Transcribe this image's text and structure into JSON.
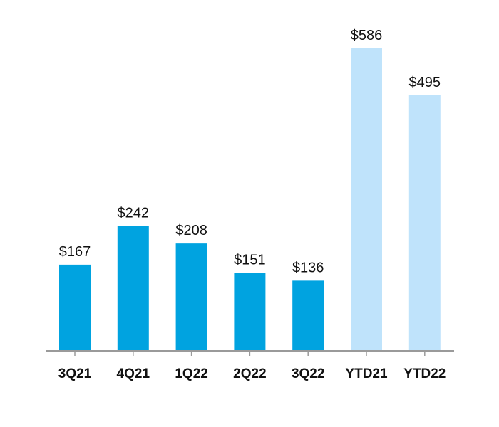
{
  "chart_data": {
    "type": "bar",
    "categories": [
      "3Q21",
      "4Q21",
      "1Q22",
      "2Q22",
      "3Q22",
      "YTD21",
      "YTD22"
    ],
    "values": [
      167,
      242,
      208,
      151,
      136,
      586,
      495
    ],
    "value_labels": [
      "$167",
      "$242",
      "$208",
      "$151",
      "$136",
      "$586",
      "$495"
    ],
    "bar_colors": [
      "#00a3e0",
      "#00a3e0",
      "#00a3e0",
      "#00a3e0",
      "#00a3e0",
      "#bfe3fb",
      "#bfe3fb"
    ],
    "title": "",
    "xlabel": "",
    "ylabel": "",
    "ylim": [
      0,
      586
    ],
    "grid": false,
    "legend": "none",
    "axis_color": "#9a9a9a"
  }
}
